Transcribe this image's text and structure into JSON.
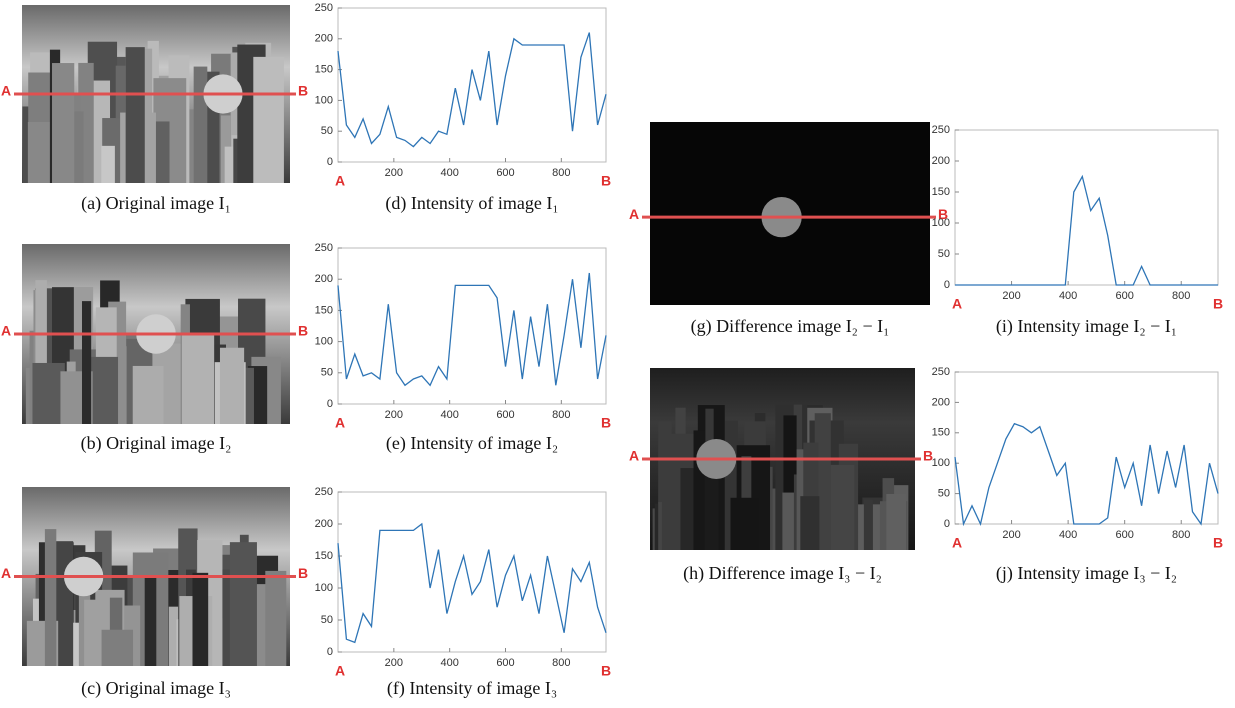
{
  "images": [
    {
      "caption": "(a) Original image I₁",
      "left_label": "A",
      "right_label": "B"
    },
    {
      "caption": "(b) Original image I₂",
      "left_label": "A",
      "right_label": "B"
    },
    {
      "caption": "(c) Original image I₃",
      "left_label": "A",
      "right_label": "B"
    },
    {
      "caption": "(g) Difference image I₂ − I₁",
      "left_label": "A",
      "right_label": "B"
    },
    {
      "caption": "(h) Difference image I₃ − I₂",
      "left_label": "A",
      "right_label": "B"
    }
  ],
  "chart_data": [
    {
      "type": "line",
      "caption": "(d) Intensity of image I₁",
      "x_start_label": "A",
      "x_end_label": "B",
      "color": "#2e75b6",
      "x": [
        0,
        30,
        60,
        90,
        120,
        150,
        180,
        210,
        240,
        270,
        300,
        330,
        360,
        390,
        420,
        450,
        480,
        510,
        540,
        570,
        600,
        630,
        660,
        690,
        720,
        750,
        780,
        810,
        840,
        870,
        900,
        930,
        960
      ],
      "values": [
        180,
        60,
        40,
        70,
        30,
        45,
        90,
        40,
        35,
        25,
        40,
        30,
        50,
        45,
        120,
        60,
        150,
        100,
        180,
        60,
        140,
        200,
        190,
        190,
        190,
        190,
        190,
        190,
        50,
        170,
        210,
        60,
        110
      ],
      "xlim": [
        0,
        960
      ],
      "ylim": [
        0,
        250
      ],
      "xticks": [
        200,
        400,
        600,
        800
      ],
      "yticks": [
        0,
        50,
        100,
        150,
        200,
        250
      ]
    },
    {
      "type": "line",
      "caption": "(e) Intensity of image I₂",
      "x_start_label": "A",
      "x_end_label": "B",
      "color": "#2e75b6",
      "x": [
        0,
        30,
        60,
        90,
        120,
        150,
        180,
        210,
        240,
        270,
        300,
        330,
        360,
        390,
        420,
        450,
        480,
        510,
        540,
        570,
        600,
        630,
        660,
        690,
        720,
        750,
        780,
        810,
        840,
        870,
        900,
        930,
        960
      ],
      "values": [
        190,
        40,
        80,
        45,
        50,
        40,
        160,
        50,
        30,
        40,
        45,
        30,
        60,
        40,
        190,
        190,
        190,
        190,
        190,
        170,
        60,
        150,
        40,
        140,
        60,
        160,
        30,
        110,
        200,
        90,
        210,
        40,
        110
      ],
      "xlim": [
        0,
        960
      ],
      "ylim": [
        0,
        250
      ],
      "xticks": [
        200,
        400,
        600,
        800
      ],
      "yticks": [
        0,
        50,
        100,
        150,
        200,
        250
      ]
    },
    {
      "type": "line",
      "caption": "(f) Intensity of image I₃",
      "x_start_label": "A",
      "x_end_label": "B",
      "color": "#2e75b6",
      "x": [
        0,
        30,
        60,
        90,
        120,
        150,
        180,
        210,
        240,
        270,
        300,
        330,
        360,
        390,
        420,
        450,
        480,
        510,
        540,
        570,
        600,
        630,
        660,
        690,
        720,
        750,
        780,
        810,
        840,
        870,
        900,
        930,
        960
      ],
      "values": [
        170,
        20,
        15,
        60,
        40,
        190,
        190,
        190,
        190,
        190,
        200,
        100,
        160,
        60,
        110,
        150,
        90,
        110,
        160,
        70,
        120,
        150,
        80,
        120,
        60,
        150,
        90,
        30,
        130,
        110,
        140,
        70,
        30
      ],
      "xlim": [
        0,
        960
      ],
      "ylim": [
        0,
        250
      ],
      "xticks": [
        200,
        400,
        600,
        800
      ],
      "yticks": [
        0,
        50,
        100,
        150,
        200,
        250
      ]
    },
    {
      "type": "line",
      "caption": "(i) Intensity image I₂ − I₁",
      "x_start_label": "A",
      "x_end_label": "B",
      "color": "#2e75b6",
      "x": [
        0,
        30,
        60,
        90,
        120,
        150,
        180,
        210,
        240,
        270,
        300,
        330,
        360,
        390,
        420,
        450,
        480,
        510,
        540,
        570,
        600,
        630,
        660,
        690,
        720,
        750,
        780,
        810,
        840,
        870,
        900,
        930
      ],
      "values": [
        0,
        0,
        0,
        0,
        0,
        0,
        0,
        0,
        0,
        0,
        0,
        0,
        0,
        0,
        150,
        175,
        120,
        140,
        80,
        0,
        0,
        0,
        30,
        0,
        0,
        0,
        0,
        0,
        0,
        0,
        0,
        0
      ],
      "xlim": [
        0,
        930
      ],
      "ylim": [
        0,
        250
      ],
      "xticks": [
        200,
        400,
        600,
        800
      ],
      "yticks": [
        0,
        50,
        100,
        150,
        200,
        250
      ]
    },
    {
      "type": "line",
      "caption": "(j) Intensity image I₃ − I₂",
      "x_start_label": "A",
      "x_end_label": "B",
      "color": "#2e75b6",
      "x": [
        0,
        30,
        60,
        90,
        120,
        150,
        180,
        210,
        240,
        270,
        300,
        330,
        360,
        390,
        420,
        450,
        480,
        510,
        540,
        570,
        600,
        630,
        660,
        690,
        720,
        750,
        780,
        810,
        840,
        870,
        900,
        930
      ],
      "values": [
        110,
        0,
        30,
        0,
        60,
        100,
        140,
        165,
        160,
        150,
        160,
        120,
        80,
        100,
        0,
        0,
        0,
        0,
        10,
        110,
        60,
        100,
        30,
        130,
        50,
        120,
        60,
        130,
        20,
        0,
        100,
        50
      ],
      "xlim": [
        0,
        930
      ],
      "ylim": [
        0,
        250
      ],
      "xticks": [
        200,
        400,
        600,
        800
      ],
      "yticks": [
        0,
        50,
        100,
        150,
        200,
        250
      ]
    }
  ]
}
